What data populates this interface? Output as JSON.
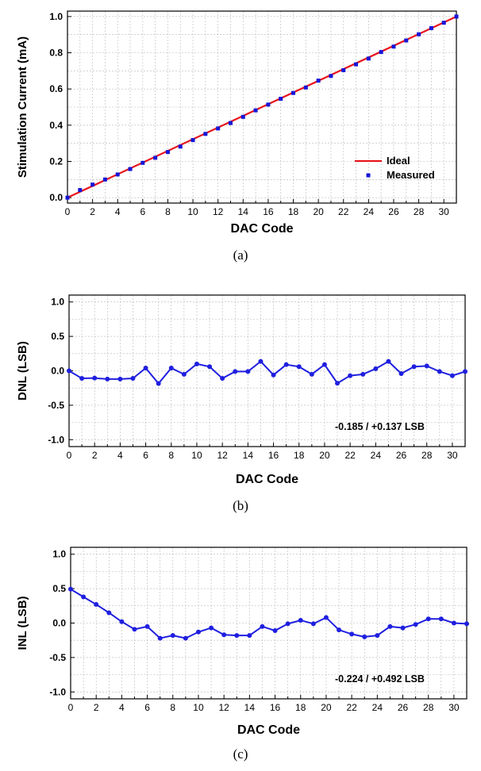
{
  "colors": {
    "ideal": "#e8141b",
    "measured": "#1515d8",
    "series": "#1f1fe0",
    "grid": "#b8b8b8",
    "axis": "#000000"
  },
  "chart_data": [
    {
      "id": "a",
      "type": "line",
      "caption": "(a)",
      "xlabel": "DAC Code",
      "ylabel": "Stimulation Current (mA)",
      "xlim": [
        0,
        31
      ],
      "ylim": [
        -0.03,
        1.03
      ],
      "xticks": [
        0,
        2,
        4,
        6,
        8,
        10,
        12,
        14,
        16,
        18,
        20,
        22,
        24,
        26,
        28,
        30
      ],
      "yticks": [
        0.0,
        0.2,
        0.4,
        0.6,
        0.8,
        1.0
      ],
      "ytick_labels": [
        "0.0",
        "0.2",
        "0.4",
        "0.6",
        "0.8",
        "1.0"
      ],
      "grid": true,
      "legend": {
        "position": "bottom-right",
        "entries": [
          "Ideal",
          "Measured"
        ]
      },
      "series": [
        {
          "name": "Ideal",
          "style": "line",
          "x": [
            0,
            31
          ],
          "values": [
            0.0,
            1.0
          ]
        },
        {
          "name": "Measured",
          "style": "markers",
          "x": [
            0,
            1,
            2,
            3,
            4,
            5,
            6,
            7,
            8,
            9,
            10,
            11,
            12,
            13,
            14,
            15,
            16,
            17,
            18,
            19,
            20,
            21,
            22,
            23,
            24,
            25,
            26,
            27,
            28,
            29,
            30,
            31
          ],
          "values": [
            0.0,
            0.042,
            0.072,
            0.1,
            0.128,
            0.158,
            0.192,
            0.22,
            0.252,
            0.282,
            0.318,
            0.352,
            0.382,
            0.412,
            0.446,
            0.482,
            0.514,
            0.546,
            0.578,
            0.608,
            0.646,
            0.672,
            0.704,
            0.736,
            0.768,
            0.804,
            0.834,
            0.868,
            0.902,
            0.936,
            0.966,
            1.0
          ]
        }
      ]
    },
    {
      "id": "b",
      "type": "line",
      "caption": "(b)",
      "xlabel": "DAC Code",
      "ylabel": "DNL (LSB)",
      "xlim": [
        0,
        31
      ],
      "ylim": [
        -1.1,
        1.1
      ],
      "xticks": [
        0,
        2,
        4,
        6,
        8,
        10,
        12,
        14,
        16,
        18,
        20,
        22,
        24,
        26,
        28,
        30
      ],
      "yticks": [
        -1.0,
        -0.5,
        0.0,
        0.5,
        1.0
      ],
      "ytick_labels": [
        "-1.0",
        "-0.5",
        "0.0",
        "0.5",
        "1.0"
      ],
      "grid": true,
      "annotation": "-0.185 / +0.137 LSB",
      "series": [
        {
          "x": [
            0,
            1,
            2,
            3,
            4,
            5,
            6,
            7,
            8,
            9,
            10,
            11,
            12,
            13,
            14,
            15,
            16,
            17,
            18,
            19,
            20,
            21,
            22,
            23,
            24,
            25,
            26,
            27,
            28,
            29,
            30,
            31
          ],
          "values": [
            0.0,
            -0.11,
            -0.105,
            -0.12,
            -0.12,
            -0.11,
            0.04,
            -0.185,
            0.04,
            -0.05,
            0.1,
            0.06,
            -0.11,
            -0.01,
            -0.01,
            0.137,
            -0.06,
            0.09,
            0.06,
            -0.05,
            0.09,
            -0.18,
            -0.07,
            -0.05,
            0.03,
            0.137,
            -0.04,
            0.06,
            0.07,
            -0.01,
            -0.07,
            -0.01
          ]
        }
      ]
    },
    {
      "id": "c",
      "type": "line",
      "caption": "(c)",
      "xlabel": "DAC Code",
      "ylabel": "INL (LSB)",
      "xlim": [
        0,
        31
      ],
      "ylim": [
        -1.1,
        1.1
      ],
      "xticks": [
        0,
        2,
        4,
        6,
        8,
        10,
        12,
        14,
        16,
        18,
        20,
        22,
        24,
        26,
        28,
        30
      ],
      "yticks": [
        -1.0,
        -0.5,
        0.0,
        0.5,
        1.0
      ],
      "ytick_labels": [
        "-1.0",
        "-0.5",
        "0.0",
        "0.5",
        "1.0"
      ],
      "grid": true,
      "annotation": "-0.224 / +0.492 LSB",
      "series": [
        {
          "x": [
            0,
            1,
            2,
            3,
            4,
            5,
            6,
            7,
            8,
            9,
            10,
            11,
            12,
            13,
            14,
            15,
            16,
            17,
            18,
            19,
            20,
            21,
            22,
            23,
            24,
            25,
            26,
            27,
            28,
            29,
            30,
            31
          ],
          "values": [
            0.492,
            0.38,
            0.27,
            0.15,
            0.02,
            -0.09,
            -0.05,
            -0.22,
            -0.18,
            -0.22,
            -0.13,
            -0.07,
            -0.17,
            -0.18,
            -0.18,
            -0.05,
            -0.11,
            -0.01,
            0.04,
            -0.01,
            0.08,
            -0.1,
            -0.16,
            -0.2,
            -0.18,
            -0.05,
            -0.07,
            -0.02,
            0.06,
            0.06,
            0.0,
            -0.01
          ]
        }
      ]
    }
  ]
}
